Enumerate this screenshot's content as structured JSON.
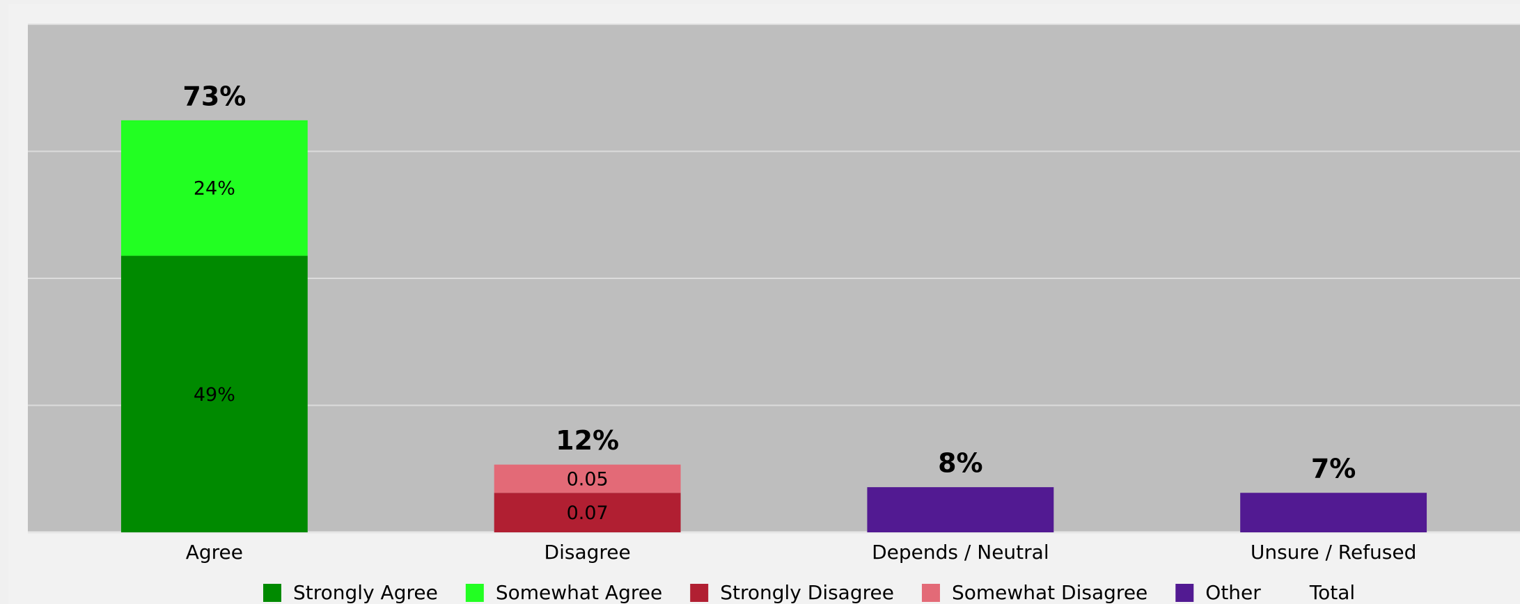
{
  "chart_data": {
    "type": "bar",
    "stacked": true,
    "categories": [
      "Agree",
      "Disagree",
      "Depends / Neutral",
      "Unsure / Refused"
    ],
    "series": [
      {
        "name": "Strongly Agree",
        "color": "#008a00",
        "values": [
          49,
          null,
          null,
          null
        ],
        "value_labels": [
          "49%",
          null,
          null,
          null
        ]
      },
      {
        "name": "Somewhat Agree",
        "color": "#22ff22",
        "values": [
          24,
          null,
          null,
          null
        ],
        "value_labels": [
          "24%",
          null,
          null,
          null
        ]
      },
      {
        "name": "Strongly Disagree",
        "color": "#b11f32",
        "values": [
          null,
          7,
          null,
          null
        ],
        "value_labels": [
          null,
          "0.07",
          null,
          null
        ]
      },
      {
        "name": "Somewhat Disagree",
        "color": "#e36a77",
        "values": [
          null,
          5,
          null,
          null
        ],
        "value_labels": [
          null,
          "0.05",
          null,
          null
        ]
      },
      {
        "name": "Other",
        "color": "#521a92",
        "values": [
          null,
          null,
          8,
          7
        ]
      },
      {
        "name": "Total",
        "values": [
          73,
          12,
          8,
          7
        ],
        "value_labels": [
          "73%",
          "12%",
          "8%",
          "7%"
        ]
      }
    ],
    "ylim": [
      0,
      90
    ],
    "yticks": [
      0,
      22.5,
      45,
      67.5,
      90
    ],
    "grid": true
  }
}
